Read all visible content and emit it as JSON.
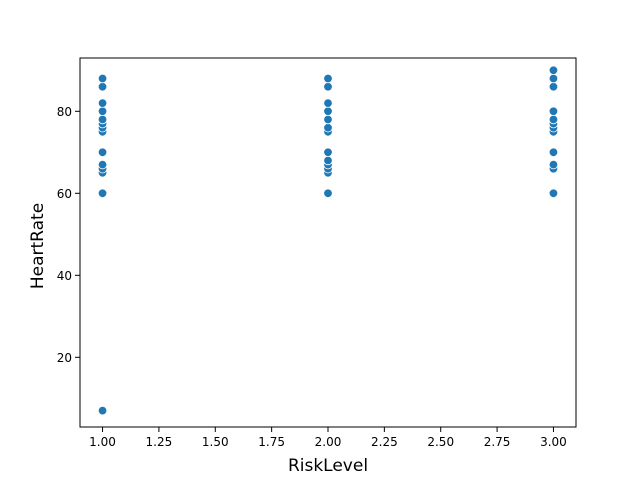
{
  "chart_data": {
    "type": "scatter",
    "title": "",
    "xlabel": "RiskLevel",
    "ylabel": "HeartRate",
    "xlim": [
      0.9,
      3.1
    ],
    "ylim": [
      3,
      93
    ],
    "xticks": [
      1.0,
      1.25,
      1.5,
      1.75,
      2.0,
      2.25,
      2.5,
      2.75,
      3.0
    ],
    "xtick_labels": [
      "1.00",
      "1.25",
      "1.50",
      "1.75",
      "2.00",
      "2.25",
      "2.50",
      "2.75",
      "3.00"
    ],
    "yticks": [
      20,
      40,
      60,
      80
    ],
    "ytick_labels": [
      "20",
      "40",
      "60",
      "80"
    ],
    "grid": false,
    "legend": "none",
    "marker_color": "#1f77b4",
    "marker_edge_color": "#ffffff",
    "series": [
      {
        "points": [
          {
            "x": 1,
            "y": 7
          },
          {
            "x": 1,
            "y": 60
          },
          {
            "x": 1,
            "y": 65
          },
          {
            "x": 1,
            "y": 66
          },
          {
            "x": 1,
            "y": 67
          },
          {
            "x": 1,
            "y": 70
          },
          {
            "x": 1,
            "y": 75
          },
          {
            "x": 1,
            "y": 76
          },
          {
            "x": 1,
            "y": 77
          },
          {
            "x": 1,
            "y": 78
          },
          {
            "x": 1,
            "y": 80
          },
          {
            "x": 1,
            "y": 82
          },
          {
            "x": 1,
            "y": 86
          },
          {
            "x": 1,
            "y": 88
          },
          {
            "x": 2,
            "y": 60
          },
          {
            "x": 2,
            "y": 65
          },
          {
            "x": 2,
            "y": 66
          },
          {
            "x": 2,
            "y": 67
          },
          {
            "x": 2,
            "y": 68
          },
          {
            "x": 2,
            "y": 70
          },
          {
            "x": 2,
            "y": 75
          },
          {
            "x": 2,
            "y": 76
          },
          {
            "x": 2,
            "y": 78
          },
          {
            "x": 2,
            "y": 80
          },
          {
            "x": 2,
            "y": 82
          },
          {
            "x": 2,
            "y": 86
          },
          {
            "x": 2,
            "y": 88
          },
          {
            "x": 3,
            "y": 60
          },
          {
            "x": 3,
            "y": 66
          },
          {
            "x": 3,
            "y": 67
          },
          {
            "x": 3,
            "y": 70
          },
          {
            "x": 3,
            "y": 75
          },
          {
            "x": 3,
            "y": 76
          },
          {
            "x": 3,
            "y": 77
          },
          {
            "x": 3,
            "y": 78
          },
          {
            "x": 3,
            "y": 80
          },
          {
            "x": 3,
            "y": 86
          },
          {
            "x": 3,
            "y": 88
          },
          {
            "x": 3,
            "y": 90
          }
        ]
      }
    ]
  }
}
